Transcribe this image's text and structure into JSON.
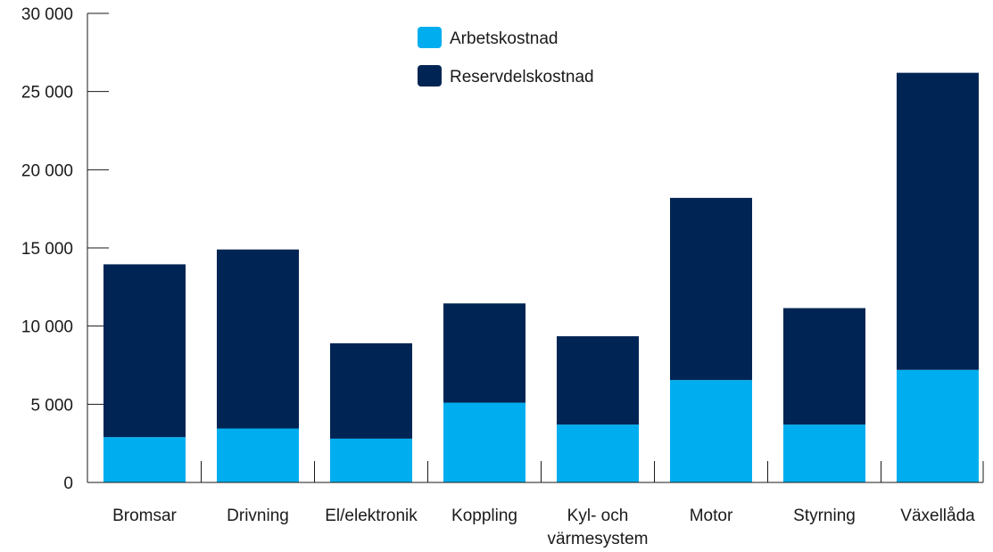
{
  "chart_data": {
    "type": "bar",
    "stacked": true,
    "categories": [
      "Bromsar",
      "Drivning",
      "El/elektronik",
      "Koppling",
      "Kyl- och\nvärmesystem",
      "Motor",
      "Styrning",
      "Växellåda"
    ],
    "series": [
      {
        "name": "Arbetskostnad",
        "color": "#00aeef",
        "values": [
          2900,
          3450,
          2800,
          5100,
          3700,
          6550,
          3700,
          7200
        ]
      },
      {
        "name": "Reservdelskostnad",
        "color": "#002554",
        "values": [
          11050,
          11450,
          6100,
          6350,
          5650,
          11650,
          7450,
          19000
        ]
      }
    ],
    "y_ticks": [
      "0",
      "5 000",
      "10 000",
      "15 000",
      "20 000",
      "25 000",
      "30 000"
    ],
    "ylim": [
      0,
      30000
    ],
    "ytick_step": 5000,
    "title": "",
    "xlabel": "",
    "ylabel": "",
    "legend_position": "top-center",
    "grid": false
  }
}
